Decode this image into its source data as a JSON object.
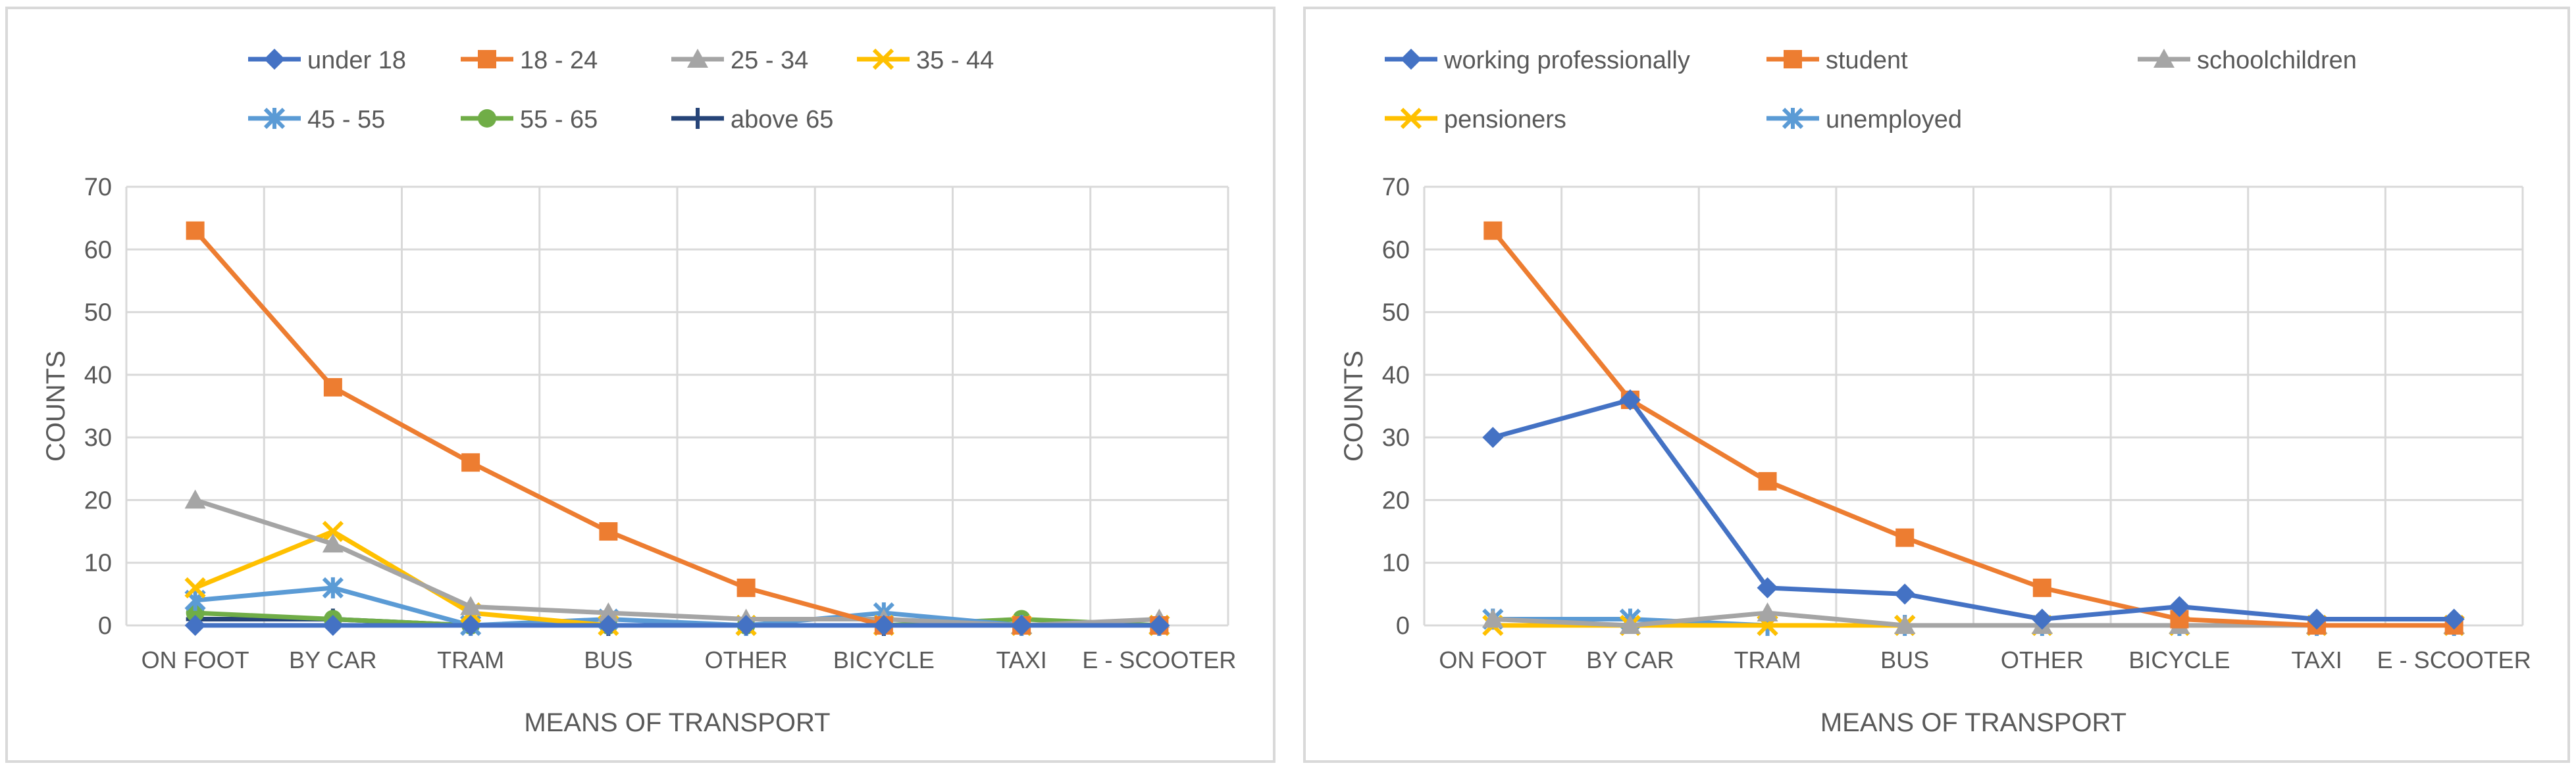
{
  "chart_data": [
    {
      "type": "line",
      "xlabel": "MEANS OF TRANSPORT",
      "ylabel": "COUNTS",
      "ylim": [
        0,
        70
      ],
      "yticks": [
        0,
        10,
        20,
        30,
        40,
        50,
        60,
        70
      ],
      "grid": true,
      "legend": "top",
      "categories": [
        "ON FOOT",
        "BY CAR",
        "TRAM",
        "BUS",
        "OTHER",
        "BICYCLE",
        "TAXI",
        "E - SCOOTER"
      ],
      "series": [
        {
          "name": "under 18",
          "color": "#4472c4",
          "marker": "diamond",
          "values": [
            0,
            0,
            0,
            0,
            0,
            0,
            0,
            0
          ]
        },
        {
          "name": "18 - 24",
          "color": "#ed7d31",
          "marker": "square",
          "values": [
            63,
            38,
            26,
            15,
            6,
            0,
            0,
            0
          ]
        },
        {
          "name": "25 - 34",
          "color": "#a5a5a5",
          "marker": "triangle",
          "values": [
            20,
            13,
            3,
            2,
            1,
            1,
            0,
            1
          ]
        },
        {
          "name": "35 - 44",
          "color": "#ffc000",
          "marker": "x",
          "values": [
            6,
            15,
            2,
            0,
            0,
            0,
            0,
            0
          ]
        },
        {
          "name": "45 - 55",
          "color": "#5b9bd5",
          "marker": "star",
          "values": [
            4,
            6,
            0,
            1,
            0,
            2,
            0,
            0
          ]
        },
        {
          "name": "55 - 65",
          "color": "#70ad47",
          "marker": "circle",
          "values": [
            2,
            1,
            0,
            0,
            0,
            0,
            1,
            0
          ]
        },
        {
          "name": "above 65",
          "color": "#264478",
          "marker": "plus",
          "values": [
            1,
            1,
            0,
            0,
            0,
            0,
            0,
            0
          ]
        }
      ]
    },
    {
      "type": "line",
      "xlabel": "MEANS OF TRANSPORT",
      "ylabel": "COUNTS",
      "ylim": [
        0,
        70
      ],
      "yticks": [
        0,
        10,
        20,
        30,
        40,
        50,
        60,
        70
      ],
      "grid": true,
      "legend": "top",
      "categories": [
        "ON FOOT",
        "BY CAR",
        "TRAM",
        "BUS",
        "OTHER",
        "BICYCLE",
        "TAXI",
        "E - SCOOTER"
      ],
      "series": [
        {
          "name": "working professionally",
          "color": "#4472c4",
          "marker": "diamond",
          "values": [
            30,
            36,
            6,
            5,
            1,
            3,
            1,
            1
          ]
        },
        {
          "name": "student",
          "color": "#ed7d31",
          "marker": "square",
          "values": [
            63,
            36,
            23,
            14,
            6,
            1,
            0,
            0
          ]
        },
        {
          "name": "schoolchildren",
          "color": "#a5a5a5",
          "marker": "triangle",
          "values": [
            1,
            0,
            2,
            0,
            0,
            0,
            0,
            0
          ]
        },
        {
          "name": "pensioners",
          "color": "#ffc000",
          "marker": "x",
          "values": [
            0,
            0,
            0,
            0,
            0,
            0,
            0,
            0
          ]
        },
        {
          "name": "unemployed",
          "color": "#5b9bd5",
          "marker": "star",
          "values": [
            1,
            1,
            0,
            0,
            0,
            0,
            0,
            0
          ]
        }
      ]
    }
  ]
}
